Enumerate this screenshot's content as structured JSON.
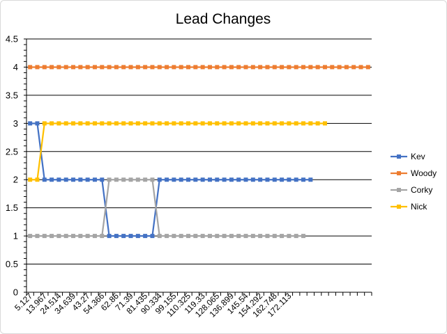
{
  "chart_data": {
    "type": "line",
    "title": "Lead Changes",
    "xlabel": "",
    "ylabel": "",
    "ylim": [
      0,
      4.5
    ],
    "yticks": [
      "0",
      "0.5",
      "1",
      "1.5",
      "2",
      "2.5",
      "3",
      "3.5",
      "4",
      "4.5"
    ],
    "grid": true,
    "legend_position": "right",
    "x_point_count": 48,
    "x_tick_labels": [
      "5.127",
      "13.967",
      "24.514",
      "34.639",
      "43.27",
      "54.366",
      "62.86",
      "71.39",
      "81.435",
      "90.334",
      "99.155",
      "110.325",
      "119.33",
      "128.065",
      "136.899",
      "145.54",
      "154.292",
      "162.748",
      "172.113"
    ],
    "series": [
      {
        "name": "Kev",
        "color": "#4472c4",
        "values": [
          3,
          3,
          2,
          2,
          2,
          2,
          2,
          2,
          2,
          2,
          2,
          1,
          1,
          1,
          1,
          1,
          1,
          1,
          2,
          2,
          2,
          2,
          2,
          2,
          2,
          2,
          2,
          2,
          2,
          2,
          2,
          2,
          2,
          2,
          2,
          2,
          2,
          2,
          2,
          2
        ]
      },
      {
        "name": "Woody",
        "color": "#ed7d31",
        "values": [
          4,
          4,
          4,
          4,
          4,
          4,
          4,
          4,
          4,
          4,
          4,
          4,
          4,
          4,
          4,
          4,
          4,
          4,
          4,
          4,
          4,
          4,
          4,
          4,
          4,
          4,
          4,
          4,
          4,
          4,
          4,
          4,
          4,
          4,
          4,
          4,
          4,
          4,
          4,
          4,
          4,
          4,
          4,
          4,
          4,
          4,
          4,
          4
        ]
      },
      {
        "name": "Corky",
        "color": "#a5a5a5",
        "values": [
          1,
          1,
          1,
          1,
          1,
          1,
          1,
          1,
          1,
          1,
          1,
          2,
          2,
          2,
          2,
          2,
          2,
          2,
          1,
          1,
          1,
          1,
          1,
          1,
          1,
          1,
          1,
          1,
          1,
          1,
          1,
          1,
          1,
          1,
          1,
          1,
          1,
          1,
          1
        ]
      },
      {
        "name": "Nick",
        "color": "#ffc000",
        "values": [
          2,
          2,
          3,
          3,
          3,
          3,
          3,
          3,
          3,
          3,
          3,
          3,
          3,
          3,
          3,
          3,
          3,
          3,
          3,
          3,
          3,
          3,
          3,
          3,
          3,
          3,
          3,
          3,
          3,
          3,
          3,
          3,
          3,
          3,
          3,
          3,
          3,
          3,
          3,
          3,
          3,
          3
        ]
      }
    ]
  }
}
